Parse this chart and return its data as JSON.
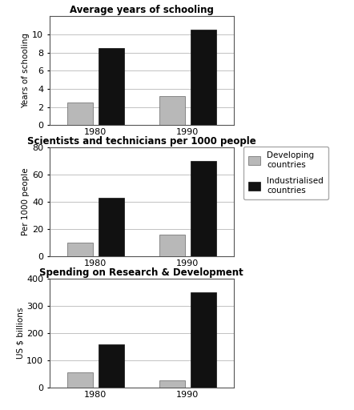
{
  "chart1": {
    "title": "Average years of schooling",
    "ylabel": "Years of schooling",
    "ylim": [
      0,
      12
    ],
    "yticks": [
      0,
      2,
      4,
      6,
      8,
      10
    ],
    "years": [
      "1980",
      "1990"
    ],
    "developing": [
      2.5,
      3.2
    ],
    "industrialised": [
      8.5,
      10.5
    ]
  },
  "chart2": {
    "title": "Scientists and technicians per 1000 people",
    "ylabel": "Per 1000 people",
    "ylim": [
      0,
      80
    ],
    "yticks": [
      0,
      20,
      40,
      60,
      80
    ],
    "years": [
      "1980",
      "1990"
    ],
    "developing": [
      10,
      16
    ],
    "industrialised": [
      43,
      70
    ]
  },
  "chart3": {
    "title": "Spending on Research & Development",
    "ylabel": "US $ billions",
    "ylim": [
      0,
      400
    ],
    "yticks": [
      0,
      100,
      200,
      300,
      400
    ],
    "years": [
      "1980",
      "1990"
    ],
    "developing": [
      55,
      25
    ],
    "industrialised": [
      160,
      350
    ]
  },
  "color_developing": "#b8b8b8",
  "color_industrialised": "#111111",
  "legend_labels": [
    "Developing\ncountries",
    "Industrialised\ncountries"
  ],
  "bar_width": 0.28,
  "background_color": "#ffffff",
  "title_fontsize": 8.5,
  "axis_fontsize": 7.5,
  "tick_fontsize": 8
}
